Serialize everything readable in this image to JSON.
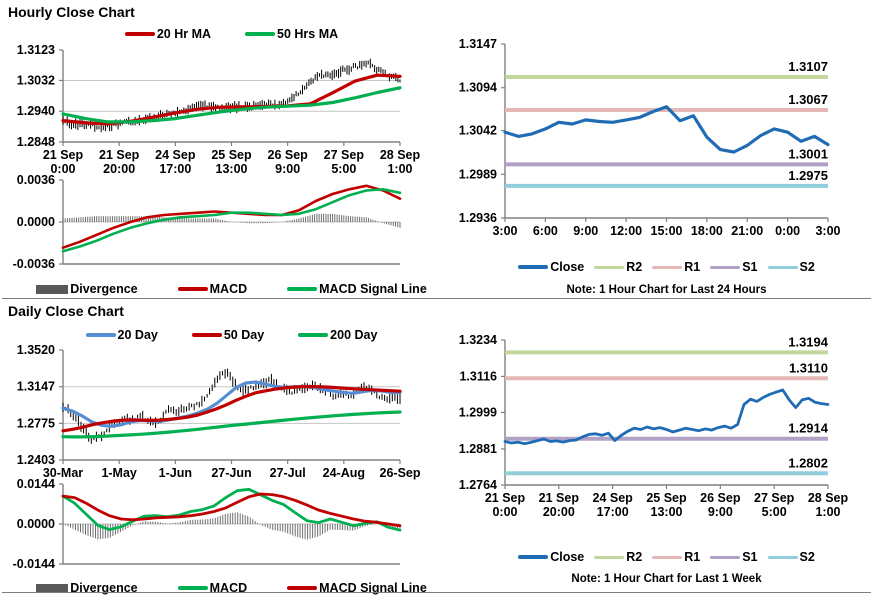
{
  "sections": {
    "hourly": {
      "title": "Hourly Close Chart"
    },
    "daily": {
      "title": "Daily Close Chart"
    }
  },
  "colors": {
    "dark_red": "#c00000",
    "green": "#00b050",
    "close_blue": "#1f6cb5",
    "ma20_blue": "#558ed5",
    "r2_green": "#c3d69b",
    "r1_pink": "#e5b8b7",
    "s1_purple": "#b2a1c7",
    "s2_cyan": "#92cddc",
    "divergence_gray": "#595959",
    "axis_gray": "#808080",
    "grid_gray": "#c6c6c6"
  },
  "chart_data": [
    {
      "type": "candlestick",
      "title": "Hourly Close Chart",
      "ylim": [
        1.2848,
        1.3123
      ],
      "yticks": [
        "1.3123",
        "1.3032",
        "1.2940",
        "1.2848"
      ],
      "grid": true,
      "xticklabels": [
        [
          "21 Sep",
          "0:00"
        ],
        [
          "21 Sep",
          "20:00"
        ],
        [
          "24 Sep",
          "17:00"
        ],
        [
          "25 Sep",
          "13:00"
        ],
        [
          "26 Sep",
          "9:00"
        ],
        [
          "27 Sep",
          "5:00"
        ],
        [
          "28 Sep",
          "1:00"
        ]
      ],
      "legend": [
        {
          "label": "20 Hr MA",
          "color": "#c00000"
        },
        {
          "label": "50 Hrs MA",
          "color": "#00b050"
        }
      ],
      "series": [
        {
          "name": "Close",
          "kind": "candle",
          "color": "#000000",
          "bars": 160,
          "range": 0.0013,
          "values": [
            1.2908,
            1.2902,
            1.2905,
            1.29,
            1.2888,
            1.2898,
            1.2905,
            1.2908,
            1.2915,
            1.2922,
            1.2928,
            1.2935,
            1.2942,
            1.295,
            1.2957,
            1.2952,
            1.295,
            1.2952,
            1.2955,
            1.2952,
            1.2955,
            1.2958,
            1.2962,
            1.2975,
            1.3,
            1.303,
            1.3045,
            1.3052,
            1.306,
            1.3068,
            1.3078,
            1.3082,
            1.306,
            1.3045,
            1.3035
          ]
        },
        {
          "name": "20 Hr MA",
          "kind": "line",
          "color": "#c00000",
          "width": 3.2,
          "values": [
            1.2912,
            1.2905,
            1.2902,
            1.291,
            1.2922,
            1.2935,
            1.2946,
            1.2952,
            1.2953,
            1.2954,
            1.2956,
            1.2962,
            1.2995,
            1.303,
            1.3048,
            1.3044
          ]
        },
        {
          "name": "50 Hrs MA",
          "kind": "line",
          "color": "#00b050",
          "width": 3.2,
          "values": [
            1.2932,
            1.2918,
            1.2908,
            1.2908,
            1.2912,
            1.2918,
            1.2928,
            1.2938,
            1.2946,
            1.2952,
            1.2955,
            1.2958,
            1.2966,
            1.298,
            1.2996,
            1.301
          ]
        }
      ]
    },
    {
      "type": "macd",
      "title": "Hourly MACD",
      "ylim": [
        -0.0036,
        0.0036
      ],
      "yticks": [
        "0.0036",
        "0.0000",
        "-0.0036"
      ],
      "grid": true,
      "xticklabels": [],
      "legend": [
        {
          "label": "Divergence",
          "color": "#595959",
          "swatch": "block"
        },
        {
          "label": "MACD",
          "color": "#c00000"
        },
        {
          "label": "MACD Signal Line",
          "color": "#00b050"
        }
      ],
      "series": [
        {
          "name": "Divergence",
          "kind": "divbars",
          "color": "#6e6e6e",
          "from": "MACD",
          "minus": "MACD Signal Line",
          "bars": 150
        },
        {
          "name": "MACD",
          "kind": "line",
          "color": "#c00000",
          "width": 2.6,
          "values": [
            -0.0022,
            -0.0017,
            -0.0011,
            -0.0005,
            0.0,
            0.0004,
            0.0006,
            0.0007,
            0.0008,
            0.0009,
            0.0008,
            0.0007,
            0.0006,
            0.0006,
            0.001,
            0.0018,
            0.0024,
            0.0028,
            0.0031,
            0.0027,
            0.002
          ]
        },
        {
          "name": "MACD Signal Line",
          "kind": "line",
          "color": "#00b050",
          "width": 2.6,
          "values": [
            -0.0025,
            -0.0021,
            -0.0016,
            -0.001,
            -0.0005,
            -0.0001,
            0.0002,
            0.0004,
            0.0005,
            0.0006,
            0.0008,
            0.0008,
            0.0007,
            0.0006,
            0.0007,
            0.0011,
            0.0017,
            0.0023,
            0.0027,
            0.0028,
            0.0025
          ]
        }
      ]
    },
    {
      "type": "line",
      "title": "Hourly Close with Pivot Levels",
      "note": "Note: 1 Hour Chart for Last 24 Hours",
      "ylim": [
        1.2936,
        1.3147
      ],
      "yticks": [
        "1.3147",
        "1.3094",
        "1.3042",
        "1.2989",
        "1.2936"
      ],
      "grid": false,
      "xticklabels": [
        "3:00",
        "6:00",
        "9:00",
        "12:00",
        "15:00",
        "18:00",
        "21:00",
        "0:00",
        "3:00"
      ],
      "legend": [
        {
          "label": "Close",
          "color": "#1f6cb5"
        },
        {
          "label": "R2",
          "color": "#c3d69b",
          "swatch": "thin"
        },
        {
          "label": "R1",
          "color": "#e5b8b7",
          "swatch": "thin"
        },
        {
          "label": "S1",
          "color": "#b2a1c7",
          "swatch": "thin"
        },
        {
          "label": "S2",
          "color": "#92cddc",
          "swatch": "thin"
        }
      ],
      "pivots": {
        "R2": 1.3107,
        "R1": 1.3067,
        "S1": 1.3001,
        "S2": 1.2975
      },
      "series": [
        {
          "name": "R2",
          "kind": "hline",
          "value": 1.3107,
          "label": "1.3107",
          "color": "#c3d69b"
        },
        {
          "name": "R1",
          "kind": "hline",
          "value": 1.3067,
          "label": "1.3067",
          "color": "#e5b8b7"
        },
        {
          "name": "S1",
          "kind": "hline",
          "value": 1.3001,
          "label": "1.3001",
          "color": "#b2a1c7"
        },
        {
          "name": "S2",
          "kind": "hline",
          "value": 1.2975,
          "label": "1.2975",
          "color": "#92cddc"
        },
        {
          "name": "Close",
          "kind": "line",
          "color": "#1f6cb5",
          "width": 3.2,
          "values": [
            1.304,
            1.3035,
            1.3038,
            1.3044,
            1.3052,
            1.305,
            1.3055,
            1.3053,
            1.3052,
            1.3055,
            1.3058,
            1.3065,
            1.3071,
            1.3054,
            1.306,
            1.3034,
            1.3019,
            1.3016,
            1.3024,
            1.3036,
            1.3044,
            1.304,
            1.3029,
            1.3035,
            1.3025
          ]
        }
      ]
    },
    {
      "type": "candlestick",
      "title": "Daily Close Chart",
      "ylim": [
        1.2403,
        1.352
      ],
      "yticks": [
        "1.3520",
        "1.3147",
        "1.2775",
        "1.2403"
      ],
      "grid": true,
      "xticklabels": [
        "30-Mar",
        "1-May",
        "1-Jun",
        "27-Jun",
        "27-Jul",
        "24-Aug",
        "26-Sep"
      ],
      "legend": [
        {
          "label": "20 Day",
          "color": "#558ed5"
        },
        {
          "label": "50 Day",
          "color": "#c00000"
        },
        {
          "label": "200 Day",
          "color": "#00b050"
        }
      ],
      "series": [
        {
          "name": "Close",
          "kind": "candle",
          "color": "#000000",
          "bars": 132,
          "range": 0.0046,
          "values": [
            1.292,
            1.29,
            1.282,
            1.27,
            1.262,
            1.264,
            1.27,
            1.276,
            1.28,
            1.282,
            1.281,
            1.285,
            1.28,
            1.278,
            1.285,
            1.293,
            1.29,
            1.292,
            1.295,
            1.298,
            1.305,
            1.318,
            1.327,
            1.328,
            1.317,
            1.31,
            1.312,
            1.317,
            1.318,
            1.322,
            1.315,
            1.312,
            1.31,
            1.311,
            1.313,
            1.315,
            1.313,
            1.31,
            1.305,
            1.308,
            1.305,
            1.31,
            1.316,
            1.31,
            1.305,
            1.303,
            1.306,
            1.303
          ]
        },
        {
          "name": "20 Day",
          "kind": "line",
          "color": "#558ed5",
          "width": 3.2,
          "values": [
            1.293,
            1.29,
            1.285,
            1.279,
            1.2755,
            1.2745,
            1.276,
            1.279,
            1.2805,
            1.28,
            1.2795,
            1.281,
            1.283,
            1.285,
            1.288,
            1.292,
            1.298,
            1.306,
            1.314,
            1.3185,
            1.3195,
            1.3175,
            1.315,
            1.314,
            1.3145,
            1.315,
            1.314,
            1.312,
            1.3105,
            1.309,
            1.308,
            1.3095,
            1.311,
            1.3105,
            1.309,
            1.3085
          ]
        },
        {
          "name": "50 Day",
          "kind": "line",
          "color": "#c00000",
          "width": 3.2,
          "values": [
            1.27,
            1.2715,
            1.2735,
            1.276,
            1.278,
            1.2795,
            1.2805,
            1.281,
            1.2808,
            1.2805,
            1.2808,
            1.2815,
            1.2825,
            1.284,
            1.286,
            1.289,
            1.2925,
            1.2965,
            1.301,
            1.305,
            1.3085,
            1.3105,
            1.3122,
            1.3135,
            1.3143,
            1.3147,
            1.3148,
            1.3145,
            1.314,
            1.3133,
            1.3127,
            1.3122,
            1.3117,
            1.3112,
            1.3107,
            1.3102
          ]
        },
        {
          "name": "200 Day",
          "kind": "line",
          "color": "#00b050",
          "width": 3.2,
          "values": [
            1.264,
            1.2638,
            1.2638,
            1.264,
            1.2643,
            1.2648,
            1.2653,
            1.2658,
            1.2664,
            1.267,
            1.2678,
            1.2686,
            1.2695,
            1.2705,
            1.2715,
            1.2726,
            1.2737,
            1.2748,
            1.2758,
            1.2768,
            1.2778,
            1.2788,
            1.2798,
            1.2808,
            1.2817,
            1.2826,
            1.2835,
            1.2843,
            1.2851,
            1.2858,
            1.2865,
            1.2871,
            1.2877,
            1.2882,
            1.2886,
            1.289
          ]
        }
      ]
    },
    {
      "type": "macd",
      "title": "Daily MACD",
      "ylim": [
        -0.0144,
        0.0144
      ],
      "yticks": [
        "0.0144",
        "0.0000",
        "-0.0144"
      ],
      "grid": true,
      "xticklabels": [],
      "legend": [
        {
          "label": "Divergence",
          "color": "#595959",
          "swatch": "block"
        },
        {
          "label": "MACD",
          "color": "#00b050"
        },
        {
          "label": "MACD Signal Line",
          "color": "#c00000"
        }
      ],
      "series": [
        {
          "name": "Divergence",
          "kind": "divbars",
          "color": "#6e6e6e",
          "from": "MACD",
          "minus": "MACD Signal Line",
          "bars": 135
        },
        {
          "name": "MACD",
          "kind": "line",
          "color": "#00b050",
          "width": 2.8,
          "values": [
            0.01,
            0.0075,
            0.0035,
            -0.0005,
            -0.002,
            -0.001,
            0.001,
            0.0028,
            0.003,
            0.0026,
            0.0032,
            0.0045,
            0.0052,
            0.0065,
            0.0095,
            0.012,
            0.0125,
            0.0105,
            0.0085,
            0.007,
            0.004,
            0.0012,
            0.0005,
            0.0018,
            0.0006,
            -0.0006,
            0.0002,
            0.0008,
            -0.0012,
            -0.0022
          ]
        },
        {
          "name": "MACD Signal Line",
          "kind": "line",
          "color": "#c00000",
          "width": 2.8,
          "values": [
            0.01,
            0.0095,
            0.0075,
            0.005,
            0.003,
            0.0018,
            0.0015,
            0.0018,
            0.0022,
            0.0024,
            0.0026,
            0.003,
            0.0036,
            0.0045,
            0.0058,
            0.0078,
            0.0098,
            0.0108,
            0.0106,
            0.0098,
            0.0085,
            0.0068,
            0.005,
            0.0038,
            0.0028,
            0.0018,
            0.001,
            0.0006,
            0.0,
            -0.0006
          ]
        }
      ]
    },
    {
      "type": "line",
      "title": "Weekly Close with Pivot Levels",
      "note": "Note: 1 Hour Chart for Last 1 Week",
      "ylim": [
        1.2764,
        1.3234
      ],
      "yticks": [
        "1.3234",
        "1.3116",
        "1.2999",
        "1.2881",
        "1.2764"
      ],
      "grid": false,
      "xticklabels": [
        [
          "21 Sep",
          "0:00"
        ],
        [
          "21 Sep",
          "20:00"
        ],
        [
          "24 Sep",
          "17:00"
        ],
        [
          "25 Sep",
          "13:00"
        ],
        [
          "26 Sep",
          "9:00"
        ],
        [
          "27 Sep",
          "5:00"
        ],
        [
          "28 Sep",
          "1:00"
        ]
      ],
      "legend": [
        {
          "label": "Close",
          "color": "#1f6cb5"
        },
        {
          "label": "R2",
          "color": "#c3d69b",
          "swatch": "thin"
        },
        {
          "label": "R1",
          "color": "#e5b8b7",
          "swatch": "thin"
        },
        {
          "label": "S1",
          "color": "#b2a1c7",
          "swatch": "thin"
        },
        {
          "label": "S2",
          "color": "#92cddc",
          "swatch": "thin"
        }
      ],
      "pivots": {
        "R2": 1.3194,
        "R1": 1.311,
        "S1": 1.2914,
        "S2": 1.2802
      },
      "series": [
        {
          "name": "R2",
          "kind": "hline",
          "value": 1.3194,
          "label": "1.3194",
          "color": "#c3d69b"
        },
        {
          "name": "R1",
          "kind": "hline",
          "value": 1.311,
          "label": "1.3110",
          "color": "#e5b8b7"
        },
        {
          "name": "S1",
          "kind": "hline",
          "value": 1.2914,
          "label": "1.2914",
          "color": "#b2a1c7"
        },
        {
          "name": "S2",
          "kind": "hline",
          "value": 1.2802,
          "label": "1.2802",
          "color": "#92cddc"
        },
        {
          "name": "Close",
          "kind": "line",
          "color": "#1f6cb5",
          "width": 2.8,
          "values": [
            1.2905,
            1.29,
            1.2903,
            1.2898,
            1.2902,
            1.2908,
            1.2913,
            1.2905,
            1.2907,
            1.2903,
            1.2908,
            1.291,
            1.292,
            1.2928,
            1.293,
            1.2925,
            1.2932,
            1.2908,
            1.2925,
            1.2938,
            1.2948,
            1.2944,
            1.2952,
            1.2946,
            1.295,
            1.2944,
            1.2936,
            1.2942,
            1.2948,
            1.2944,
            1.294,
            1.2946,
            1.2942,
            1.295,
            1.2955,
            1.2948,
            1.296,
            1.3025,
            1.3042,
            1.3035,
            1.3048,
            1.3058,
            1.3065,
            1.3072,
            1.304,
            1.3015,
            1.304,
            1.3045,
            1.3032,
            1.3028,
            1.3025
          ]
        }
      ]
    }
  ]
}
